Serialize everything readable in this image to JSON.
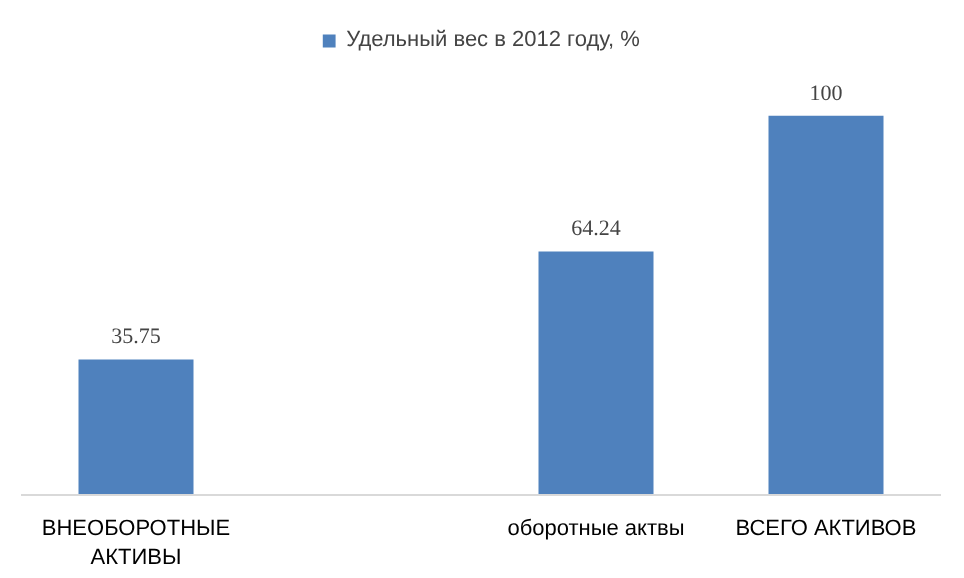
{
  "chart_data": {
    "type": "bar",
    "categories": [
      "ВНЕОБОРОТНЫЕ\nАКТИВЫ",
      null,
      "оборотные актвы",
      "ВСЕГО АКТИВОВ"
    ],
    "series": [
      {
        "name": "Удельный вес в 2012 году, %",
        "color": "#4f81bd",
        "values": [
          35.75,
          null,
          64.24,
          100
        ]
      }
    ],
    "data_labels": true,
    "legend": "top",
    "grid": false
  }
}
